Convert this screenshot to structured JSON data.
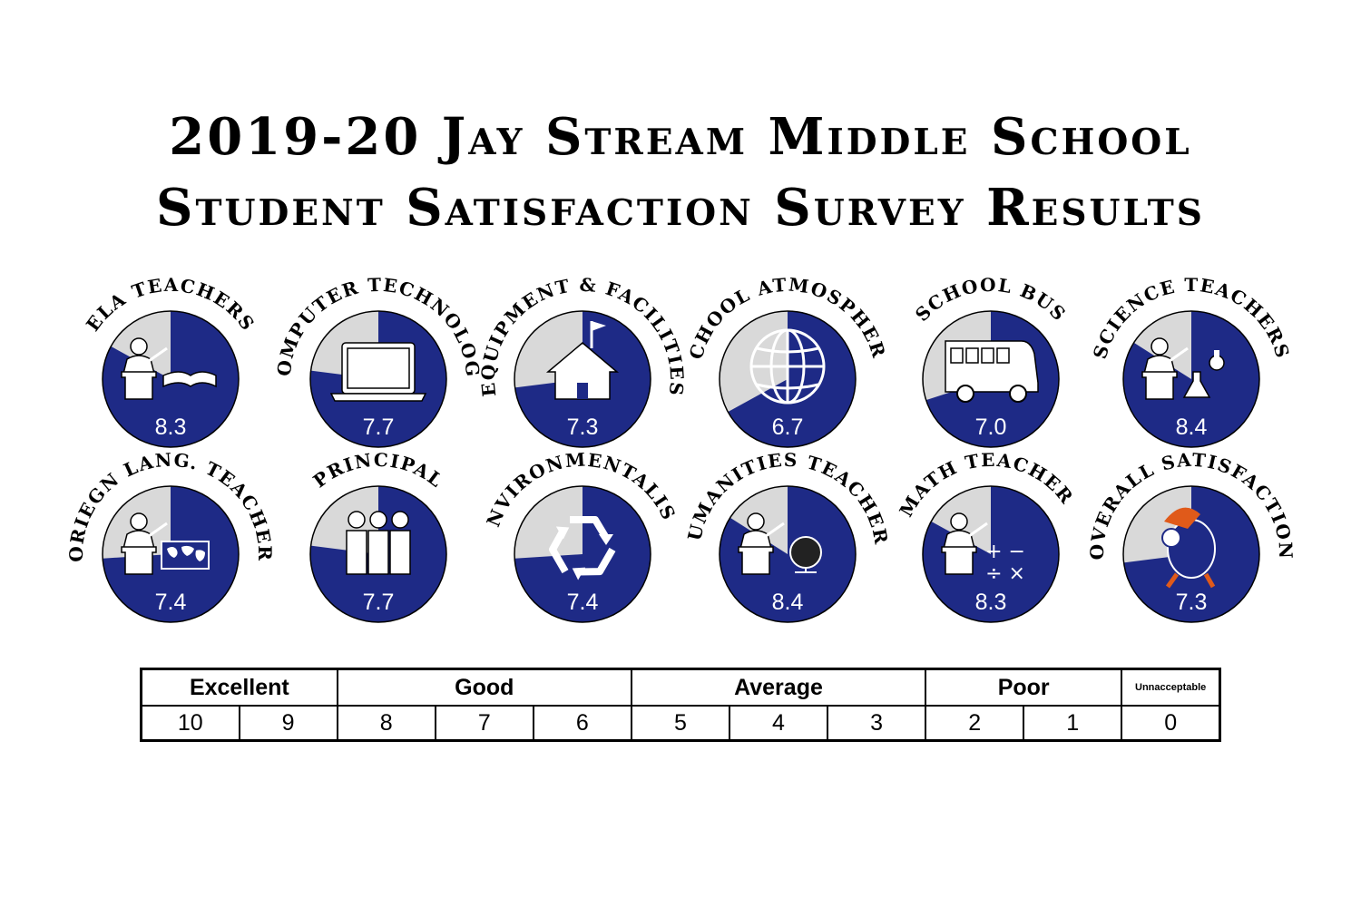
{
  "title": {
    "line1": "2019-20 Jay Stream Middle School",
    "line2": "Student Satisfaction Survey Results"
  },
  "colors": {
    "fill": "#1e2a86",
    "empty": "#d9d9d9",
    "outline": "#000000"
  },
  "chart_data": {
    "type": "pie",
    "scale_max": 10,
    "items": [
      {
        "label": "ELA Teachers",
        "value": 8.3,
        "icon": "teacher-book-icon"
      },
      {
        "label": "Computer Technology",
        "value": 7.7,
        "icon": "laptop-icon"
      },
      {
        "label": "Equipment & Facilities",
        "value": 7.3,
        "icon": "schoolhouse-icon"
      },
      {
        "label": "School Atmosphere",
        "value": 6.7,
        "icon": "globe-icon"
      },
      {
        "label": "School Bus",
        "value": 7.0,
        "icon": "bus-icon"
      },
      {
        "label": "Science Teachers",
        "value": 8.4,
        "icon": "teacher-flask-icon"
      },
      {
        "label": "Foriegn Lang. Teachers",
        "value": 7.4,
        "icon": "teacher-map-icon"
      },
      {
        "label": "Principal",
        "value": 7.7,
        "icon": "people-icon"
      },
      {
        "label": "Environmentalism",
        "value": 7.4,
        "icon": "recycle-icon"
      },
      {
        "label": "Humanities Teachers",
        "value": 8.4,
        "icon": "teacher-globe-icon"
      },
      {
        "label": "Math Teachers",
        "value": 8.3,
        "icon": "teacher-math-icon"
      },
      {
        "label": "Overall Satisfaction",
        "value": 7.3,
        "icon": "mascot-icon"
      }
    ]
  },
  "scale": {
    "categories": [
      {
        "label": "Excellent",
        "span": 2
      },
      {
        "label": "Good",
        "span": 3
      },
      {
        "label": "Average",
        "span": 3
      },
      {
        "label": "Poor",
        "span": 2
      },
      {
        "label": "Unnacceptable",
        "span": 1
      }
    ],
    "numbers": [
      "10",
      "9",
      "8",
      "7",
      "6",
      "5",
      "4",
      "3",
      "2",
      "1",
      "0"
    ]
  }
}
